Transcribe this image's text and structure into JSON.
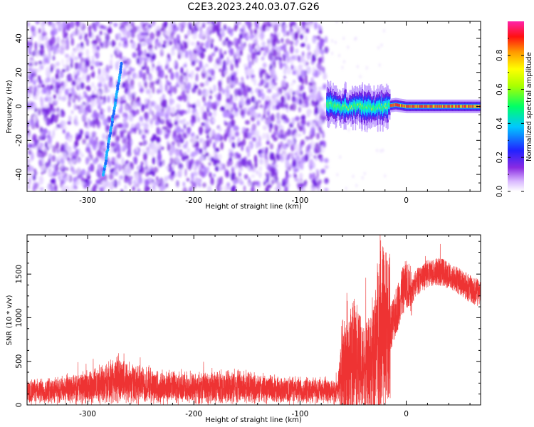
{
  "title": "C2E3.2023.240.03.07.G26",
  "chart_data": [
    {
      "type": "heatmap",
      "xlabel": "Height of straight line (km)",
      "ylabel": "Frequency (Hz)",
      "xlim": [
        -357,
        70
      ],
      "ylim": [
        -50,
        50
      ],
      "xticks": [
        -300,
        -200,
        -100,
        0
      ],
      "yticks": [
        -40,
        -20,
        0,
        20,
        40
      ],
      "colorbar": {
        "label": "Normalized spectral amplitude",
        "range": [
          0.0,
          1.0
        ],
        "ticks": [
          0.0,
          0.2,
          0.4,
          0.6,
          0.8
        ],
        "palette": "rainbow (purple-blue-cyan-green-yellow-orange-red-magenta)"
      },
      "features": {
        "noise_region_x": [
          -357,
          -75
        ],
        "noise_amplitude": "0.0-0.2 (white/purple)",
        "diagonal_streak": {
          "x": [
            -285,
            -268
          ],
          "y": [
            -40,
            25
          ],
          "amplitude": "0.2-0.4"
        },
        "signal_band": {
          "x": [
            -75,
            70
          ],
          "center_frequency": [
            {
              "x": -75,
              "y": 2
            },
            {
              "x": -65,
              "y": 0
            },
            {
              "x": -55,
              "y": -1
            },
            {
              "x": -45,
              "y": 1
            },
            {
              "x": -35,
              "y": -1
            },
            {
              "x": -20,
              "y": 0
            },
            {
              "x": -10,
              "y": 1
            },
            {
              "x": 0,
              "y": 0
            },
            {
              "x": 70,
              "y": 0
            }
          ],
          "amplitude": "0.4-1.0 (green-yellow-red core)"
        }
      }
    },
    {
      "type": "line",
      "xlabel": "Height of straight line (km)",
      "ylabel": "SNR (10 * v/v)",
      "xlim": [
        -357,
        70
      ],
      "ylim": [
        0,
        1950
      ],
      "xticks": [
        -300,
        -200,
        -100,
        0
      ],
      "yticks": [
        0,
        500,
        1000,
        1500
      ],
      "color": "#ee3333",
      "series": [
        {
          "x": [
            -357,
            -340,
            -320,
            -300,
            -280,
            -270,
            -260,
            -240,
            -220,
            -200,
            -180,
            -160,
            -140,
            -120,
            -100,
            -80,
            -65,
            -60,
            -55,
            -50,
            -45,
            -40,
            -35,
            -30,
            -25,
            -20,
            -15,
            -10,
            -5,
            0,
            5,
            10,
            15,
            20,
            25,
            30,
            35,
            40,
            45,
            50,
            55,
            60,
            65,
            70
          ],
          "y": [
            150,
            160,
            170,
            200,
            260,
            300,
            250,
            220,
            200,
            190,
            200,
            210,
            190,
            170,
            170,
            160,
            140,
            450,
            400,
            600,
            500,
            400,
            450,
            550,
            1000,
            850,
            900,
            1050,
            1250,
            1400,
            1300,
            1420,
            1450,
            1500,
            1520,
            1530,
            1520,
            1480,
            1450,
            1420,
            1380,
            1330,
            1300,
            1280
          ]
        }
      ]
    }
  ]
}
